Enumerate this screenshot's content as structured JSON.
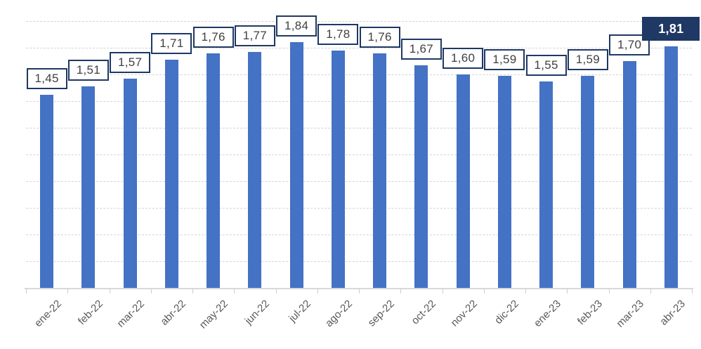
{
  "chart_data": {
    "type": "bar",
    "title": "",
    "categories": [
      "ene-22",
      "feb-22",
      "mar-22",
      "abr-22",
      "may-22",
      "jun-22",
      "jul-22",
      "ago-22",
      "sep-22",
      "oct-22",
      "nov-22",
      "dic-22",
      "ene-23",
      "feb-23",
      "mar-23",
      "abr-23"
    ],
    "values": [
      1.45,
      1.51,
      1.57,
      1.71,
      1.76,
      1.77,
      1.84,
      1.78,
      1.76,
      1.67,
      1.6,
      1.59,
      1.55,
      1.59,
      1.7,
      1.81
    ],
    "labels": [
      "1,45",
      "1,51",
      "1,57",
      "1,71",
      "1,76",
      "1,77",
      "1,84",
      "1,78",
      "1,76",
      "1,67",
      "1,60",
      "1,59",
      "1,55",
      "1,59",
      "1,70",
      "1,81"
    ],
    "xlabel": "",
    "ylabel": "",
    "ylim": [
      0,
      2.0
    ],
    "gridline_step": 0.2,
    "grid": true,
    "legend": "none",
    "highlight_index": 15,
    "colors": {
      "bar": "#4472C4",
      "label_box_border": "#1F3864",
      "label_box_fill": "#FFFFFF",
      "label_text": "#404040",
      "highlight_box_fill": "#1F3864",
      "highlight_text": "#FFFFFF",
      "gridline": "#D4D4D4",
      "axis_line": "#D9D9D9",
      "axis_tick_label": "#595959"
    }
  }
}
